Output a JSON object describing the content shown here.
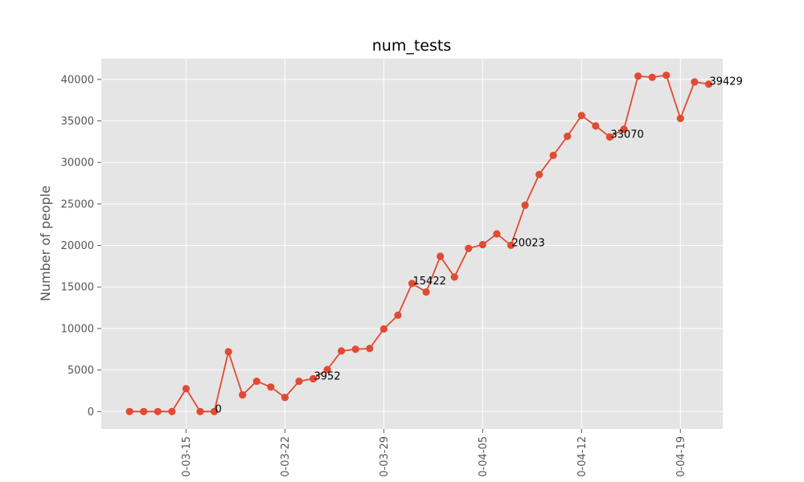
{
  "chart_data": {
    "type": "line",
    "title": "num_tests",
    "xlabel": "",
    "ylabel": "Number of people",
    "x": [
      "2020-03-11",
      "2020-03-12",
      "2020-03-13",
      "2020-03-14",
      "2020-03-15",
      "2020-03-16",
      "2020-03-17",
      "2020-03-18",
      "2020-03-19",
      "2020-03-20",
      "2020-03-21",
      "2020-03-22",
      "2020-03-23",
      "2020-03-24",
      "2020-03-25",
      "2020-03-26",
      "2020-03-27",
      "2020-03-28",
      "2020-03-29",
      "2020-03-30",
      "2020-03-31",
      "2020-04-01",
      "2020-04-02",
      "2020-04-03",
      "2020-04-04",
      "2020-04-05",
      "2020-04-06",
      "2020-04-07",
      "2020-04-08",
      "2020-04-09",
      "2020-04-10",
      "2020-04-11",
      "2020-04-12",
      "2020-04-13",
      "2020-04-14",
      "2020-04-15",
      "2020-04-16",
      "2020-04-17",
      "2020-04-18",
      "2020-04-19",
      "2020-04-20",
      "2020-04-21"
    ],
    "values": [
      0,
      0,
      0,
      0,
      2750,
      0,
      0,
      7200,
      2000,
      3650,
      2950,
      1700,
      3650,
      3952,
      5050,
      7300,
      7500,
      7600,
      9950,
      11600,
      15422,
      14400,
      18700,
      16200,
      19650,
      20100,
      21400,
      20023,
      24850,
      28550,
      30850,
      33150,
      35650,
      34400,
      33070,
      34000,
      40400,
      40250,
      40500,
      35300,
      39700,
      39429
    ],
    "annotations": [
      {
        "x": "2020-03-17",
        "text": "0"
      },
      {
        "x": "2020-03-24",
        "text": "3952"
      },
      {
        "x": "2020-03-31",
        "text": "15422"
      },
      {
        "x": "2020-04-07",
        "text": "20023"
      },
      {
        "x": "2020-04-14",
        "text": "33070"
      },
      {
        "x": "2020-04-21",
        "text": "39429"
      }
    ],
    "x_ticks": [
      "2020-03-15",
      "2020-03-22",
      "2020-03-29",
      "2020-04-05",
      "2020-04-12",
      "2020-04-19"
    ],
    "x_tick_labels": [
      "0-03-15",
      "0-03-22",
      "0-03-29",
      "0-04-05",
      "0-04-12",
      "0-04-19"
    ],
    "y_ticks": [
      0,
      5000,
      10000,
      15000,
      20000,
      25000,
      30000,
      35000,
      40000
    ],
    "ylim": [
      -2100,
      42500
    ],
    "xlim": [
      "2020-03-09",
      "2020-04-22"
    ],
    "grid": true,
    "colors": {
      "series": "#E24A33",
      "background": "#E5E5E5",
      "grid": "#ffffff"
    }
  }
}
